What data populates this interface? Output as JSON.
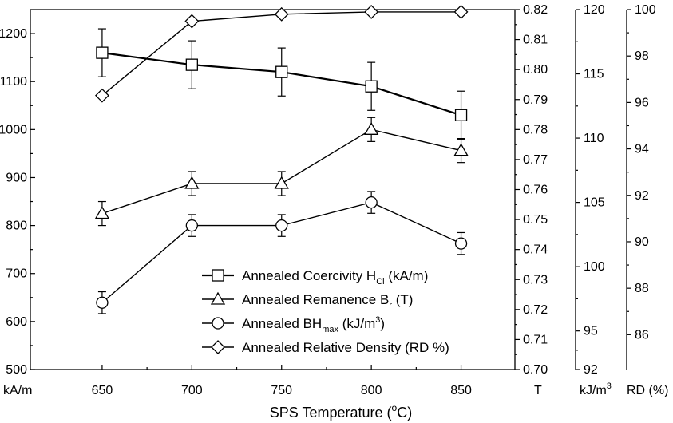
{
  "chart_data": {
    "type": "line",
    "xlabel": "SPS Temperature (°C)",
    "xlabel_parts": {
      "main": "SPS Temperature (",
      "sup": "o",
      "tail": "C)"
    },
    "x": [
      650,
      700,
      750,
      800,
      850
    ],
    "x_ticks": [
      "650",
      "700",
      "750",
      "800",
      "850"
    ],
    "xlim": [
      610,
      880
    ],
    "axes": [
      {
        "id": "coercivity",
        "unit": "kA/m",
        "ylim": [
          500,
          1250
        ],
        "ticks": [
          500,
          600,
          700,
          800,
          900,
          1000,
          1100,
          1200
        ],
        "side": "left"
      },
      {
        "id": "remanence",
        "unit": "T",
        "ylim": [
          0.7,
          0.82
        ],
        "ticks": [
          "0.70",
          "0.71",
          "0.72",
          "0.73",
          "0.74",
          "0.75",
          "0.76",
          "0.77",
          "0.78",
          "0.79",
          "0.80",
          "0.81",
          "0.82"
        ],
        "side": "right"
      },
      {
        "id": "bhmax",
        "unit": "kJ/m³",
        "unit_parts": {
          "main": "kJ/m",
          "sup": "3"
        },
        "ylim": [
          92,
          120
        ],
        "ticks": [
          92,
          95,
          100,
          105,
          110,
          115,
          120
        ],
        "side": "right"
      },
      {
        "id": "density",
        "unit": "RD (%)",
        "ylim": [
          84.5,
          100
        ],
        "ticks": [
          86,
          88,
          90,
          92,
          94,
          96,
          98,
          100
        ],
        "side": "right"
      }
    ],
    "series": [
      {
        "name": "Annealed Coercivity H_Ci (kA/m)",
        "axis": "coercivity",
        "marker": "square",
        "bold": true,
        "values": [
          1160,
          1135,
          1120,
          1090,
          1030
        ],
        "err": [
          50,
          50,
          50,
          50,
          50
        ]
      },
      {
        "name": "Annealed Remanence B_r (T)",
        "axis": "remanence",
        "marker": "triangle",
        "values": [
          0.752,
          0.762,
          0.762,
          0.78,
          0.773
        ],
        "err": [
          0.004,
          0.004,
          0.004,
          0.004,
          0.004
        ]
      },
      {
        "name": "Annealed BH_max (kJ/m³)",
        "axis": "bhmax",
        "marker": "circle",
        "values": [
          97.2,
          103.2,
          103.2,
          105.0,
          101.8
        ],
        "err": [
          0.85,
          0.85,
          0.85,
          0.85,
          0.85
        ]
      },
      {
        "name": "Annealed Relative Density (RD %)",
        "axis": "density",
        "marker": "diamond",
        "values": [
          96.3,
          99.5,
          99.8,
          99.9,
          99.9
        ]
      }
    ],
    "legend": {
      "placement": "bottom-center",
      "entries": [
        {
          "main": "Annealed Coercivity H",
          "sub": "Ci",
          "tail": " (kA/m)"
        },
        {
          "main": "Annealed Remanence B",
          "sub": "r",
          "tail": " (T)"
        },
        {
          "main": "Annealed BH",
          "sub": "max",
          "tail": " (kJ/m",
          "sup": "3",
          "end": ")"
        },
        {
          "main": "Annealed Relative Density (RD %)"
        }
      ]
    },
    "grid": false
  }
}
